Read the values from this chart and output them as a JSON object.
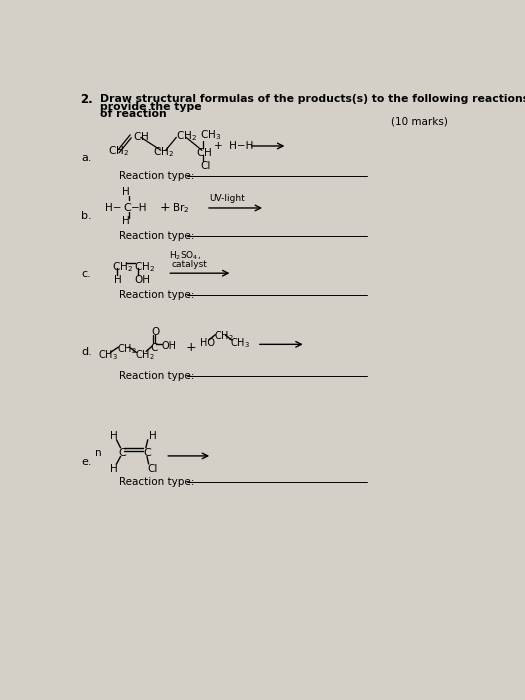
{
  "bg_color": "#d4d0c8",
  "title_num": "2.",
  "title_line1": "Draw structural formulas of the products(s) to the following reactions and provide the type",
  "title_line2": "of reaction",
  "marks": "(10 marks)",
  "reaction_type_label": "Reaction type:"
}
